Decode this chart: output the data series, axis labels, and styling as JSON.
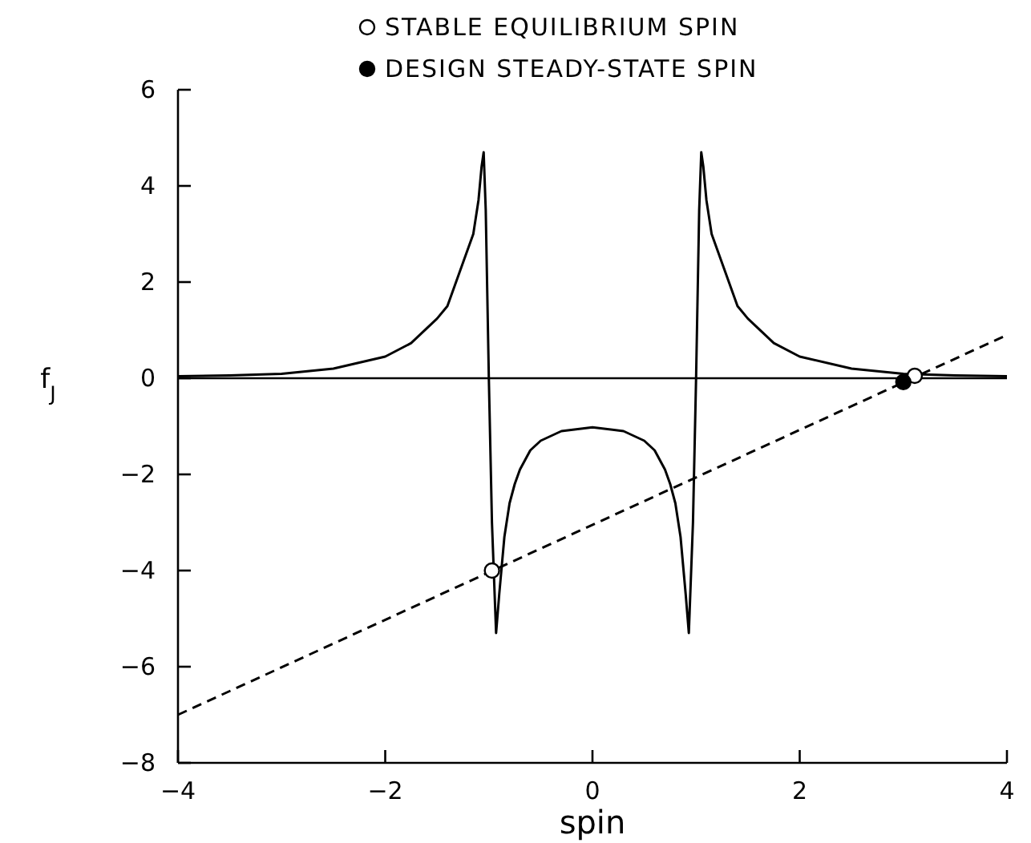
{
  "chart_data": {
    "type": "line",
    "xlabel": "spin",
    "ylabel": "f$_{J}$",
    "xlim": [
      -4,
      4
    ],
    "ylim": [
      -8,
      6
    ],
    "xticks": [
      -4,
      -2,
      0,
      2,
      4
    ],
    "yticks": [
      -8,
      -6,
      -4,
      -2,
      0,
      2,
      4,
      6
    ],
    "grid": false,
    "legend": "top",
    "ref_lines": [
      {
        "axis": "y",
        "value": 0,
        "color": "#000000",
        "line_style": "solid"
      }
    ],
    "series": [
      {
        "type": "line",
        "color": "#000000",
        "line_style": "solid",
        "marker": "none",
        "x": [
          -4,
          -3.5,
          -3,
          -2.5,
          -2,
          -1.75,
          -1.5,
          -1.4,
          -1.25,
          -1.15,
          -1.1,
          -1.07,
          -1.05,
          -1.03,
          -1.0,
          -0.97,
          -0.93,
          -0.9,
          -0.85,
          -0.8,
          -0.75,
          -0.7,
          -0.6,
          -0.5,
          -0.3,
          0,
          0.3,
          0.5,
          0.6,
          0.7,
          0.75,
          0.8,
          0.85,
          0.9,
          0.93,
          0.97,
          1.0,
          1.03,
          1.05,
          1.07,
          1.1,
          1.15,
          1.25,
          1.4,
          1.5,
          1.75,
          2,
          2.5,
          3,
          3.5,
          4
        ],
        "values": [
          0.04,
          0.06,
          0.09,
          0.2,
          0.45,
          0.73,
          1.24,
          1.5,
          2.4,
          3.0,
          3.7,
          4.4,
          4.7,
          3.5,
          0,
          -3,
          -5.3,
          -4.5,
          -3.3,
          -2.6,
          -2.2,
          -1.9,
          -1.5,
          -1.3,
          -1.1,
          -1.02,
          -1.1,
          -1.3,
          -1.5,
          -1.9,
          -2.2,
          -2.6,
          -3.3,
          -4.5,
          -5.3,
          -3,
          0,
          3.5,
          4.7,
          4.4,
          3.7,
          3.0,
          2.4,
          1.5,
          1.24,
          0.73,
          0.45,
          0.2,
          0.09,
          0.06,
          0.04
        ]
      },
      {
        "type": "line",
        "color": "#000000",
        "line_style": "dashed",
        "marker": "none",
        "x": [
          -4,
          4
        ],
        "values": [
          -7,
          0.9
        ]
      },
      {
        "type": "scatter",
        "name": "STABLE EQUILIBRIUM SPIN",
        "color": "#000000",
        "marker": "circle",
        "x": [
          -0.97,
          3.11
        ],
        "values": [
          -4,
          0.05
        ]
      },
      {
        "type": "scatter",
        "name": "DESIGN STEADY-STATE SPIN",
        "color": "#000000",
        "marker": "circle",
        "x": [
          3.0
        ],
        "values": [
          -0.08
        ]
      }
    ]
  }
}
